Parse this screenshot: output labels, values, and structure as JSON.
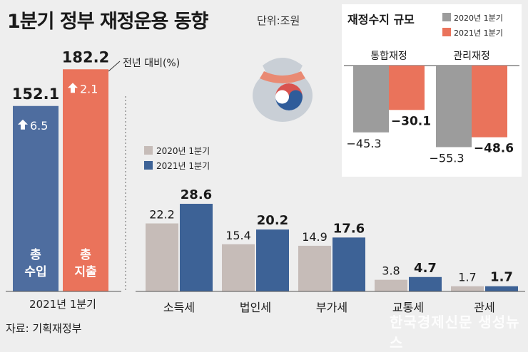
{
  "header": {
    "title": "1분기 정부 재정운용 동향",
    "unit": "단위:조원"
  },
  "source": "자료: 기획재정부",
  "watermark": "한국경제신문 생성뉴스",
  "colors": {
    "revenue_blue": "#4e6d9f",
    "expense_orange": "#ea735b",
    "gray_2020": "#c6bcb8",
    "blue_2021": "#3d6296",
    "inset_gray": "#9c9c9c",
    "inset_orange": "#ea735b"
  },
  "chart_data": [
    {
      "type": "bar",
      "categories": [
        "총\n수입",
        "총\n지출"
      ],
      "values": [
        152.1,
        182.2
      ],
      "yoy_change": [
        6.5,
        2.1
      ],
      "yoy_label": "전년 대비(%)",
      "xlabel": "2021년 1분기"
    },
    {
      "type": "bar",
      "categories": [
        "소득세",
        "법인세",
        "부가세",
        "교통세",
        "관세"
      ],
      "series": [
        {
          "name": "2020년 1분기",
          "values": [
            22.2,
            15.4,
            14.9,
            3.8,
            1.7
          ]
        },
        {
          "name": "2021년 1분기",
          "values": [
            28.6,
            20.2,
            17.6,
            4.7,
            1.7
          ]
        }
      ]
    },
    {
      "type": "bar",
      "title": "재정수지 규모",
      "categories": [
        "통합재정",
        "관리재정"
      ],
      "series": [
        {
          "name": "2020년 1분기",
          "values": [
            -45.3,
            -55.3
          ]
        },
        {
          "name": "2021년 1분기",
          "values": [
            -30.1,
            -48.6
          ]
        }
      ]
    }
  ]
}
